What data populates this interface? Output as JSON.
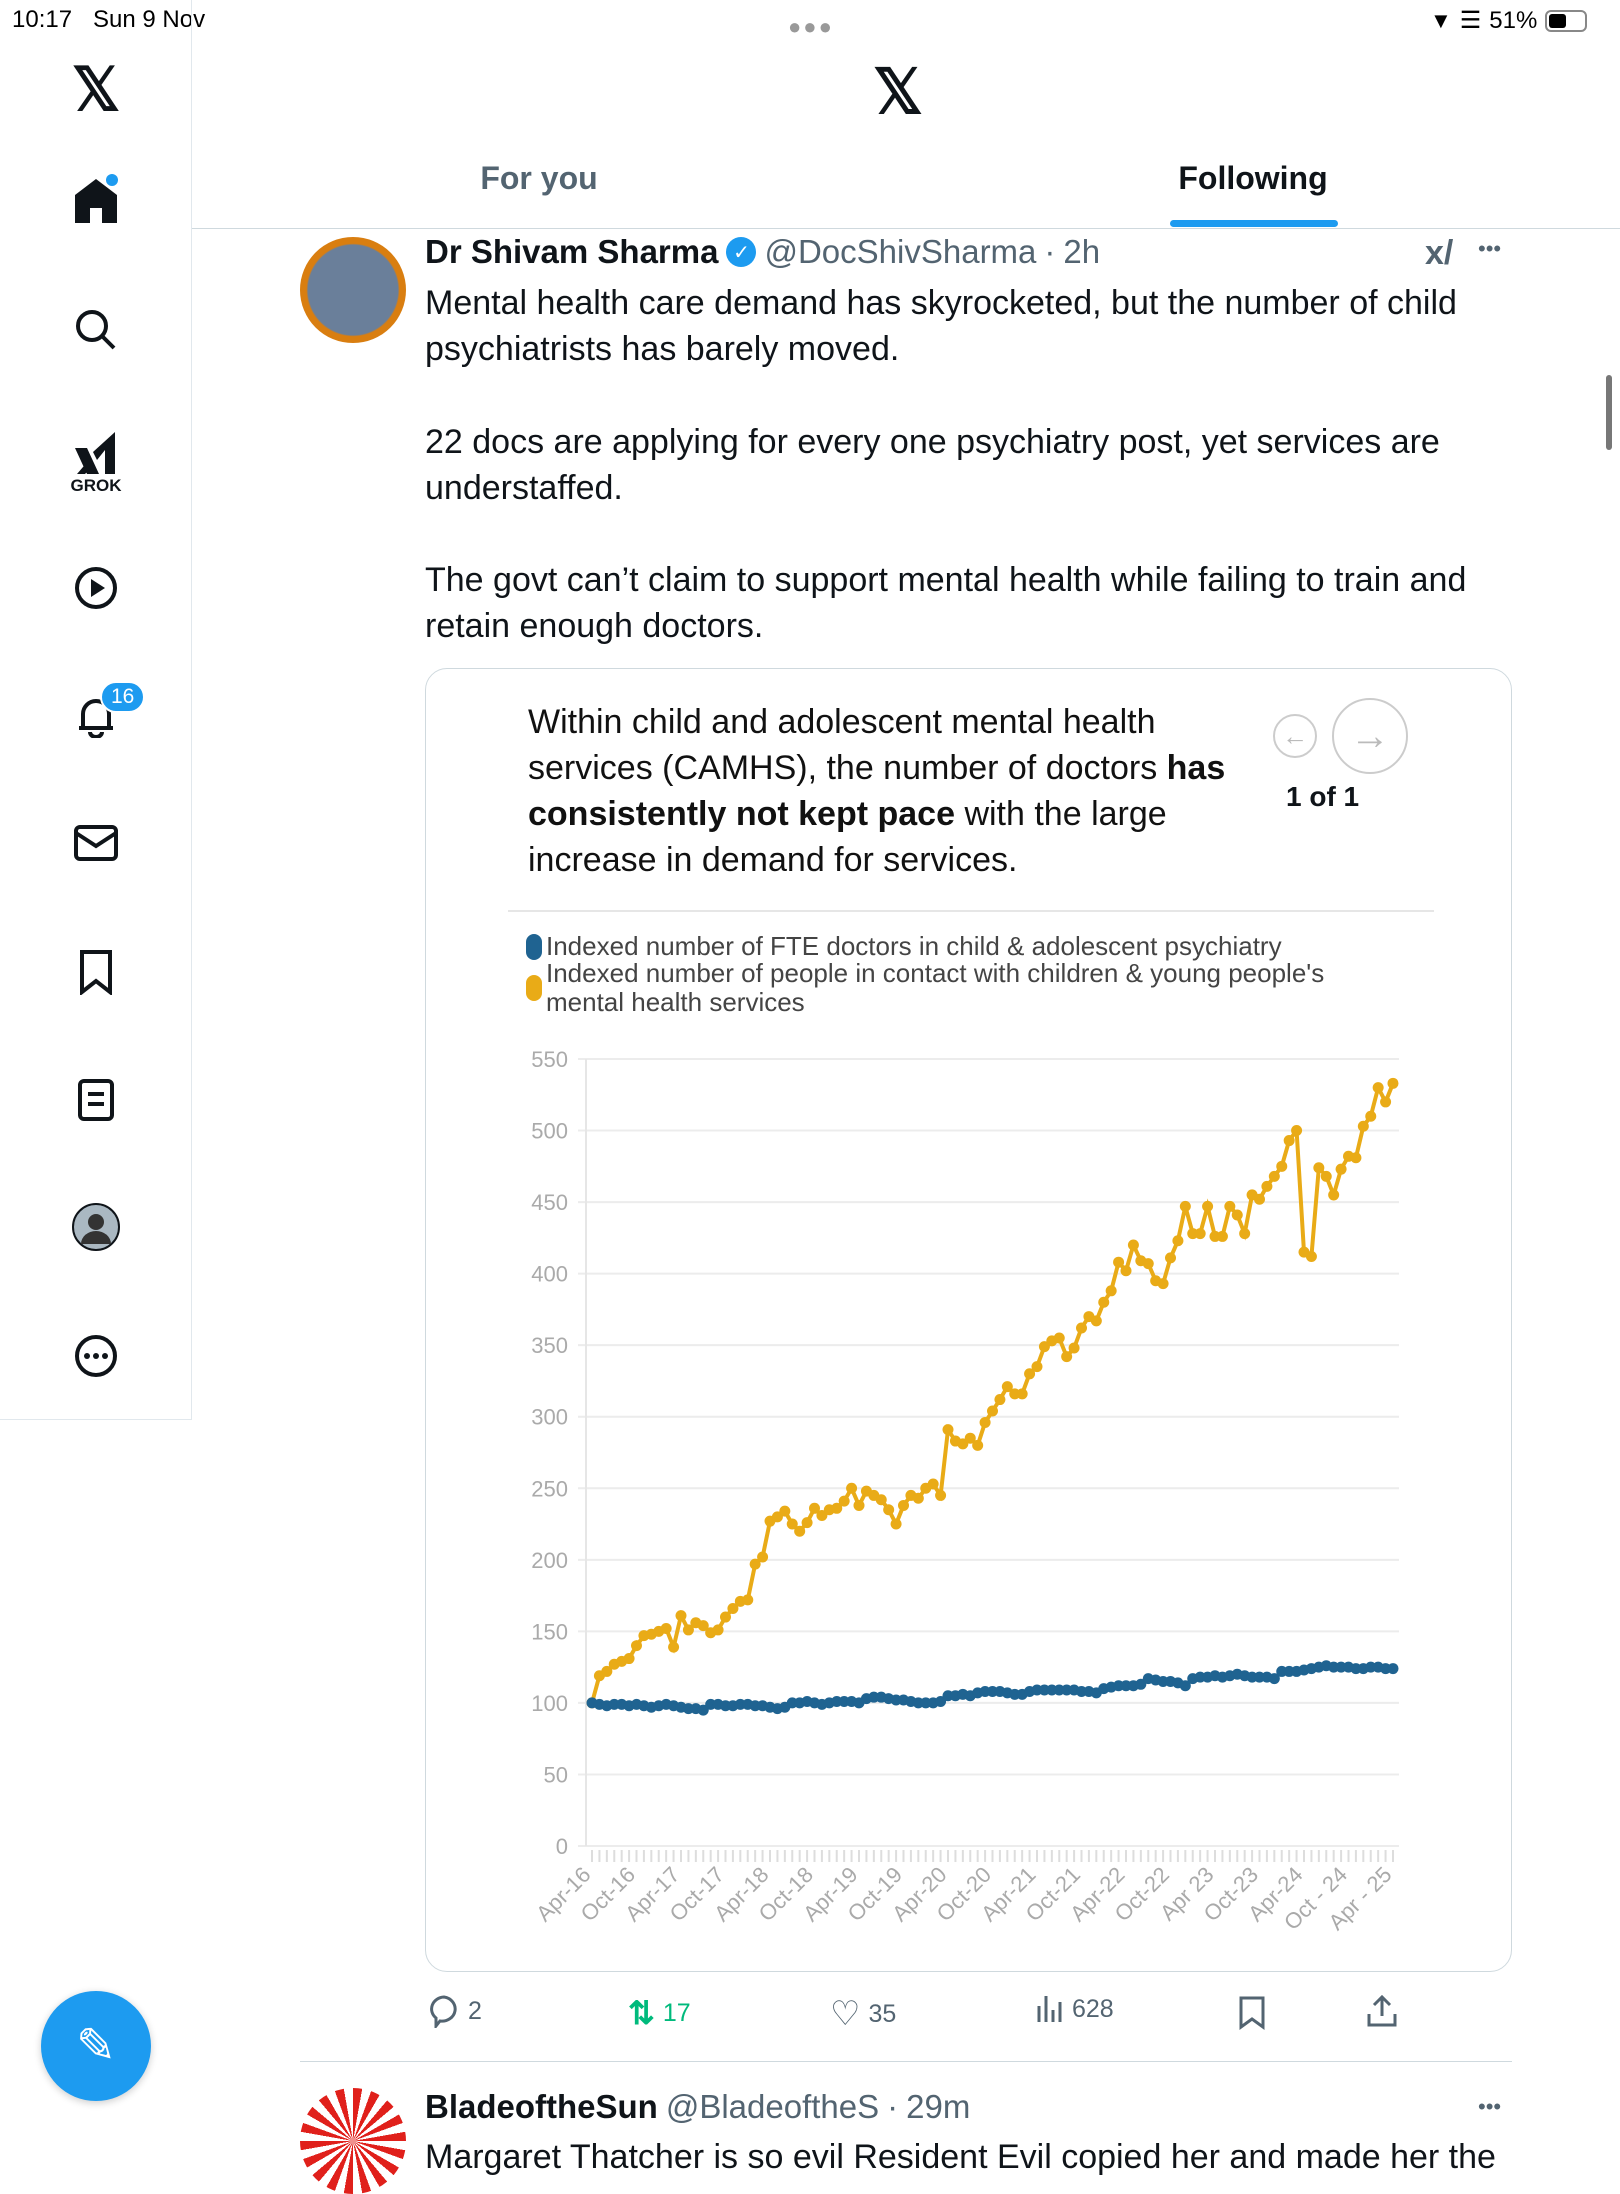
{
  "status_bar": {
    "time": "10:17",
    "date": "Sun 9 Nov",
    "battery": "51%"
  },
  "sidebar": {
    "items": [
      {
        "icon": "x-logo-icon"
      },
      {
        "icon": "home-icon",
        "has_dot": true
      },
      {
        "icon": "search-icon"
      },
      {
        "icon": "grok-icon",
        "label": "GROK"
      },
      {
        "icon": "video-icon"
      },
      {
        "icon": "bell-icon",
        "badge": "16"
      },
      {
        "icon": "mail-icon"
      },
      {
        "icon": "bookmark-icon"
      },
      {
        "icon": "lists-icon"
      },
      {
        "icon": "profile-icon"
      },
      {
        "icon": "more-icon"
      }
    ]
  },
  "header": {
    "tabs": [
      {
        "label": "For you",
        "active": false
      },
      {
        "label": "Following",
        "active": true
      }
    ]
  },
  "tweet": {
    "name": "Dr Shivam Sharma",
    "verified": true,
    "handle": "@DocShivSharma",
    "time": "2h",
    "paragraphs": [
      "Mental health care demand has skyrocketed, but the number of child psychiatrists has barely moved.",
      "22 docs are applying for every one psychiatry post, yet services are understaffed.",
      "The govt can’t claim to support mental health while failing to train and retain enough doctors."
    ],
    "card": {
      "text_before": "Within child and adolescent mental health services (CAMHS), the number of doctors ",
      "text_bold": "has consistently not kept pace",
      "text_after": " with the large increase in demand for services.",
      "pager": "1 of 1"
    },
    "actions": {
      "replies": "2",
      "reposts": "17",
      "likes": "35",
      "views": "628"
    }
  },
  "next_tweet": {
    "name": "BladeoftheSun",
    "handle": "@BladeoftheS",
    "time": "29m",
    "text": "Margaret Thatcher is so evil Resident Evil copied her and made her the"
  },
  "colors": {
    "accent": "#1d9bf0",
    "repost": "#00ba7c",
    "series_blue": "#1f6391",
    "series_yellow": "#e9ab17"
  },
  "chart_data": {
    "type": "line",
    "title": "",
    "xlabel": "",
    "ylabel": "",
    "ylim": [
      0,
      550
    ],
    "yticks": [
      0,
      50,
      100,
      150,
      200,
      250,
      300,
      350,
      400,
      450,
      500,
      550
    ],
    "x_tick_labels": [
      "Apr-16",
      "Oct-16",
      "Apr-17",
      "Oct-17",
      "Apr-18",
      "Oct-18",
      "Apr-19",
      "Oct-19",
      "Apr-20",
      "Oct-20",
      "Apr-21",
      "Oct-21",
      "Apr-22",
      "Oct-22",
      "Apr 23",
      "Oct-23",
      "Apr-24",
      "Oct - 24",
      "Apr - 25"
    ],
    "grid": true,
    "legend_position": "top",
    "series": [
      {
        "name": "Indexed number of FTE doctors in child & adolescent psychiatry",
        "color": "#1f6391",
        "values": [
          100,
          99,
          98,
          99,
          99,
          98,
          99,
          98,
          97,
          98,
          99,
          98,
          97,
          96,
          96,
          95,
          99,
          99,
          98,
          98,
          99,
          99,
          98,
          98,
          97,
          96,
          97,
          100,
          100,
          101,
          100,
          99,
          100,
          101,
          101,
          101,
          100,
          103,
          104,
          104,
          103,
          102,
          102,
          101,
          100,
          100,
          100,
          101,
          105,
          105,
          106,
          105,
          107,
          108,
          108,
          108,
          107,
          106,
          106,
          108,
          109,
          109,
          109,
          109,
          109,
          109,
          108,
          108,
          107,
          110,
          111,
          112,
          112,
          112,
          113,
          117,
          116,
          115,
          115,
          114,
          112,
          117,
          118,
          118,
          119,
          118,
          119,
          120,
          119,
          118,
          118,
          118,
          117,
          122,
          122,
          122,
          123,
          124,
          125,
          126,
          125,
          125,
          125,
          124,
          124,
          125,
          125,
          124,
          124
        ]
      },
      {
        "name": "Indexed number of people in contact with children & young people's mental health services",
        "color": "#e9ab17",
        "values": [
          100,
          119,
          122,
          127,
          129,
          131,
          140,
          147,
          148,
          150,
          152,
          139,
          161,
          151,
          156,
          154,
          149,
          151,
          160,
          166,
          171,
          172,
          197,
          202,
          227,
          230,
          234,
          225,
          220,
          226,
          236,
          231,
          235,
          236,
          241,
          250,
          238,
          248,
          245,
          242,
          235,
          225,
          238,
          245,
          243,
          250,
          253,
          245,
          291,
          283,
          281,
          285,
          280,
          296,
          304,
          312,
          321,
          316,
          316,
          330,
          335,
          349,
          353,
          355,
          342,
          348,
          362,
          370,
          367,
          380,
          388,
          408,
          402,
          420,
          409,
          407,
          395,
          393,
          411,
          423,
          447,
          428,
          428,
          447,
          426,
          426,
          447,
          441,
          428,
          455,
          452,
          461,
          468,
          475,
          493,
          500,
          415,
          412,
          474,
          468,
          455,
          473,
          482,
          481,
          503,
          510,
          530,
          520,
          533
        ]
      }
    ]
  }
}
